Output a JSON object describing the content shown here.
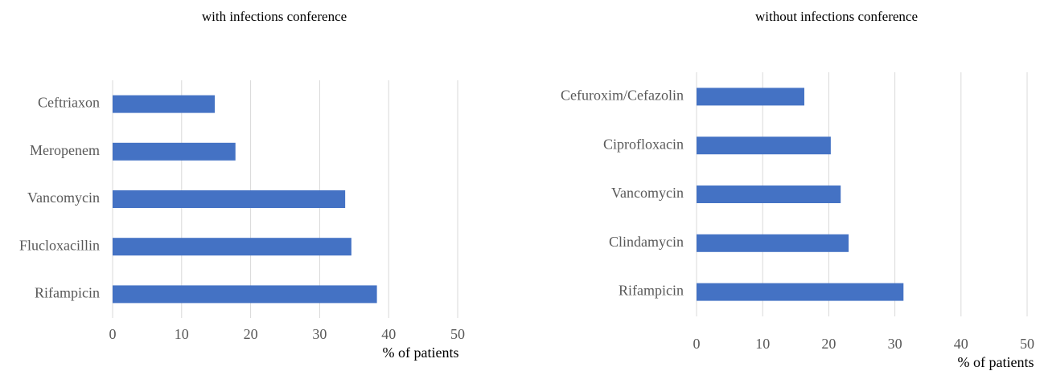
{
  "chart_data": [
    {
      "type": "bar",
      "orientation": "horizontal",
      "title": "with infections conference",
      "x_label": "% of patients",
      "categories": [
        "Ceftriaxon",
        "Meropenem",
        "Vancomycin",
        "Flucloxacillin",
        "Rifampicin"
      ],
      "values": [
        14.8,
        17.8,
        33.7,
        34.6,
        38.3
      ],
      "color": "#4472c4",
      "xlim": [
        0,
        50
      ],
      "xticks": [
        0,
        10,
        20,
        30,
        40,
        50
      ],
      "grid": true
    },
    {
      "type": "bar",
      "orientation": "horizontal",
      "title": "without infections conference",
      "x_label": "% of patients",
      "categories": [
        "Cefuroxim/Cefazolin",
        "Ciprofloxacin",
        "Vancomycin",
        "Clindamycin",
        "Rifampicin"
      ],
      "values": [
        16.3,
        20.3,
        21.8,
        23.0,
        31.3
      ],
      "color": "#4472c4",
      "xlim": [
        0,
        50
      ],
      "xticks": [
        0,
        10,
        20,
        30,
        40,
        50
      ],
      "grid": true
    }
  ]
}
